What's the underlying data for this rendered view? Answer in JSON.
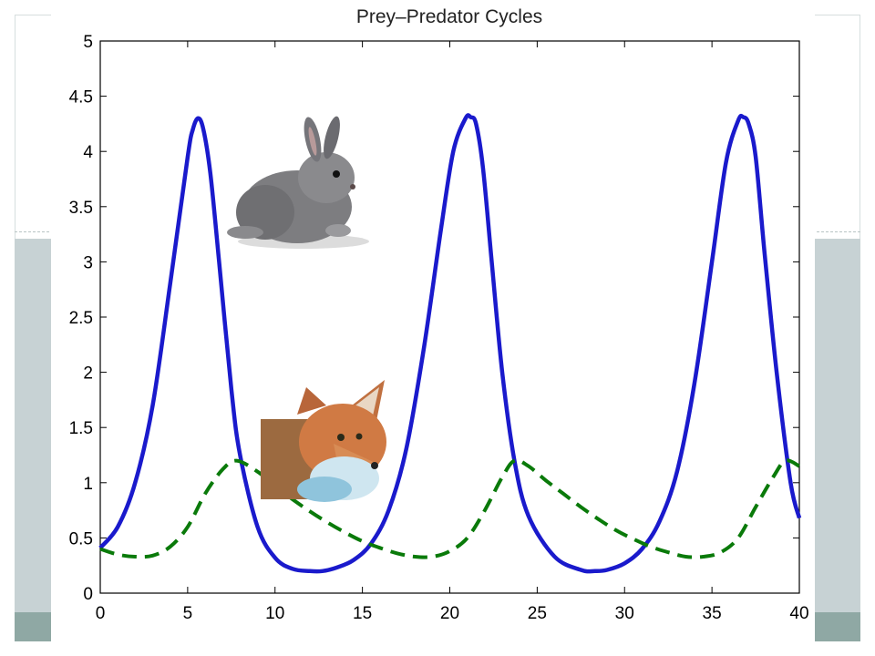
{
  "chart_data": {
    "type": "line",
    "title": "Prey–Predator Cycles",
    "xlabel": "",
    "ylabel": "",
    "xlim": [
      0,
      40
    ],
    "ylim": [
      0,
      5
    ],
    "x_ticks": [
      "0",
      "5",
      "10",
      "15",
      "20",
      "25",
      "30",
      "35",
      "40"
    ],
    "y_ticks": [
      "0",
      "0.5",
      "1",
      "1.5",
      "2",
      "2.5",
      "3",
      "3.5",
      "4",
      "4.5",
      "5"
    ],
    "grid": false,
    "legend": "none",
    "series": [
      {
        "color": "#1a1acc",
        "style": "solid",
        "x": [
          0,
          1,
          2,
          3,
          4,
          5,
          5.3,
          5.6,
          5.9,
          6.3,
          6.8,
          7.5,
          8,
          9,
          10,
          11,
          12,
          12.7,
          13.5,
          14.5,
          15.5,
          16.5,
          17.5,
          18.5,
          19.5,
          20.2,
          20.9,
          21.2,
          21.5,
          21.9,
          22.4,
          23,
          23.7,
          24.5,
          26,
          27.5,
          28.3,
          29,
          30,
          31,
          32,
          33,
          34,
          35,
          35.8,
          36.5,
          36.8,
          37.1,
          37.5,
          38,
          38.7,
          39.5,
          40
        ],
        "values": [
          0.41,
          0.6,
          1.0,
          1.7,
          2.8,
          3.95,
          4.2,
          4.3,
          4.2,
          3.8,
          3.0,
          1.85,
          1.25,
          0.6,
          0.32,
          0.22,
          0.2,
          0.2,
          0.23,
          0.3,
          0.45,
          0.75,
          1.3,
          2.2,
          3.3,
          4.0,
          4.3,
          4.31,
          4.25,
          3.85,
          3.0,
          2.0,
          1.2,
          0.7,
          0.33,
          0.21,
          0.2,
          0.21,
          0.27,
          0.4,
          0.65,
          1.1,
          1.9,
          3.0,
          3.9,
          4.28,
          4.31,
          4.25,
          3.95,
          3.1,
          2.0,
          1.0,
          0.68
        ]
      },
      {
        "color": "#0a7a0a",
        "style": "dashed",
        "x": [
          0,
          1,
          2,
          3,
          4,
          5,
          6,
          7,
          7.8,
          9,
          10,
          11,
          12,
          13,
          14,
          15,
          16,
          17,
          18,
          19,
          20,
          21,
          22,
          23,
          23.7,
          24.5,
          25.5,
          26.5,
          27.5,
          28.5,
          29.5,
          30.5,
          31.5,
          32.5,
          33.5,
          34.5,
          35.5,
          36.5,
          37.5,
          38.5,
          39.2,
          40
        ],
        "values": [
          0.4,
          0.35,
          0.33,
          0.34,
          0.42,
          0.6,
          0.9,
          1.12,
          1.2,
          1.1,
          0.97,
          0.85,
          0.74,
          0.64,
          0.55,
          0.47,
          0.41,
          0.36,
          0.33,
          0.33,
          0.38,
          0.5,
          0.75,
          1.05,
          1.2,
          1.15,
          1.02,
          0.9,
          0.78,
          0.67,
          0.57,
          0.49,
          0.42,
          0.37,
          0.33,
          0.33,
          0.37,
          0.5,
          0.78,
          1.05,
          1.2,
          1.15
        ]
      }
    ]
  },
  "illustrations": {
    "rabbit": "rabbit-illustration",
    "fox": "fox-illustration"
  }
}
